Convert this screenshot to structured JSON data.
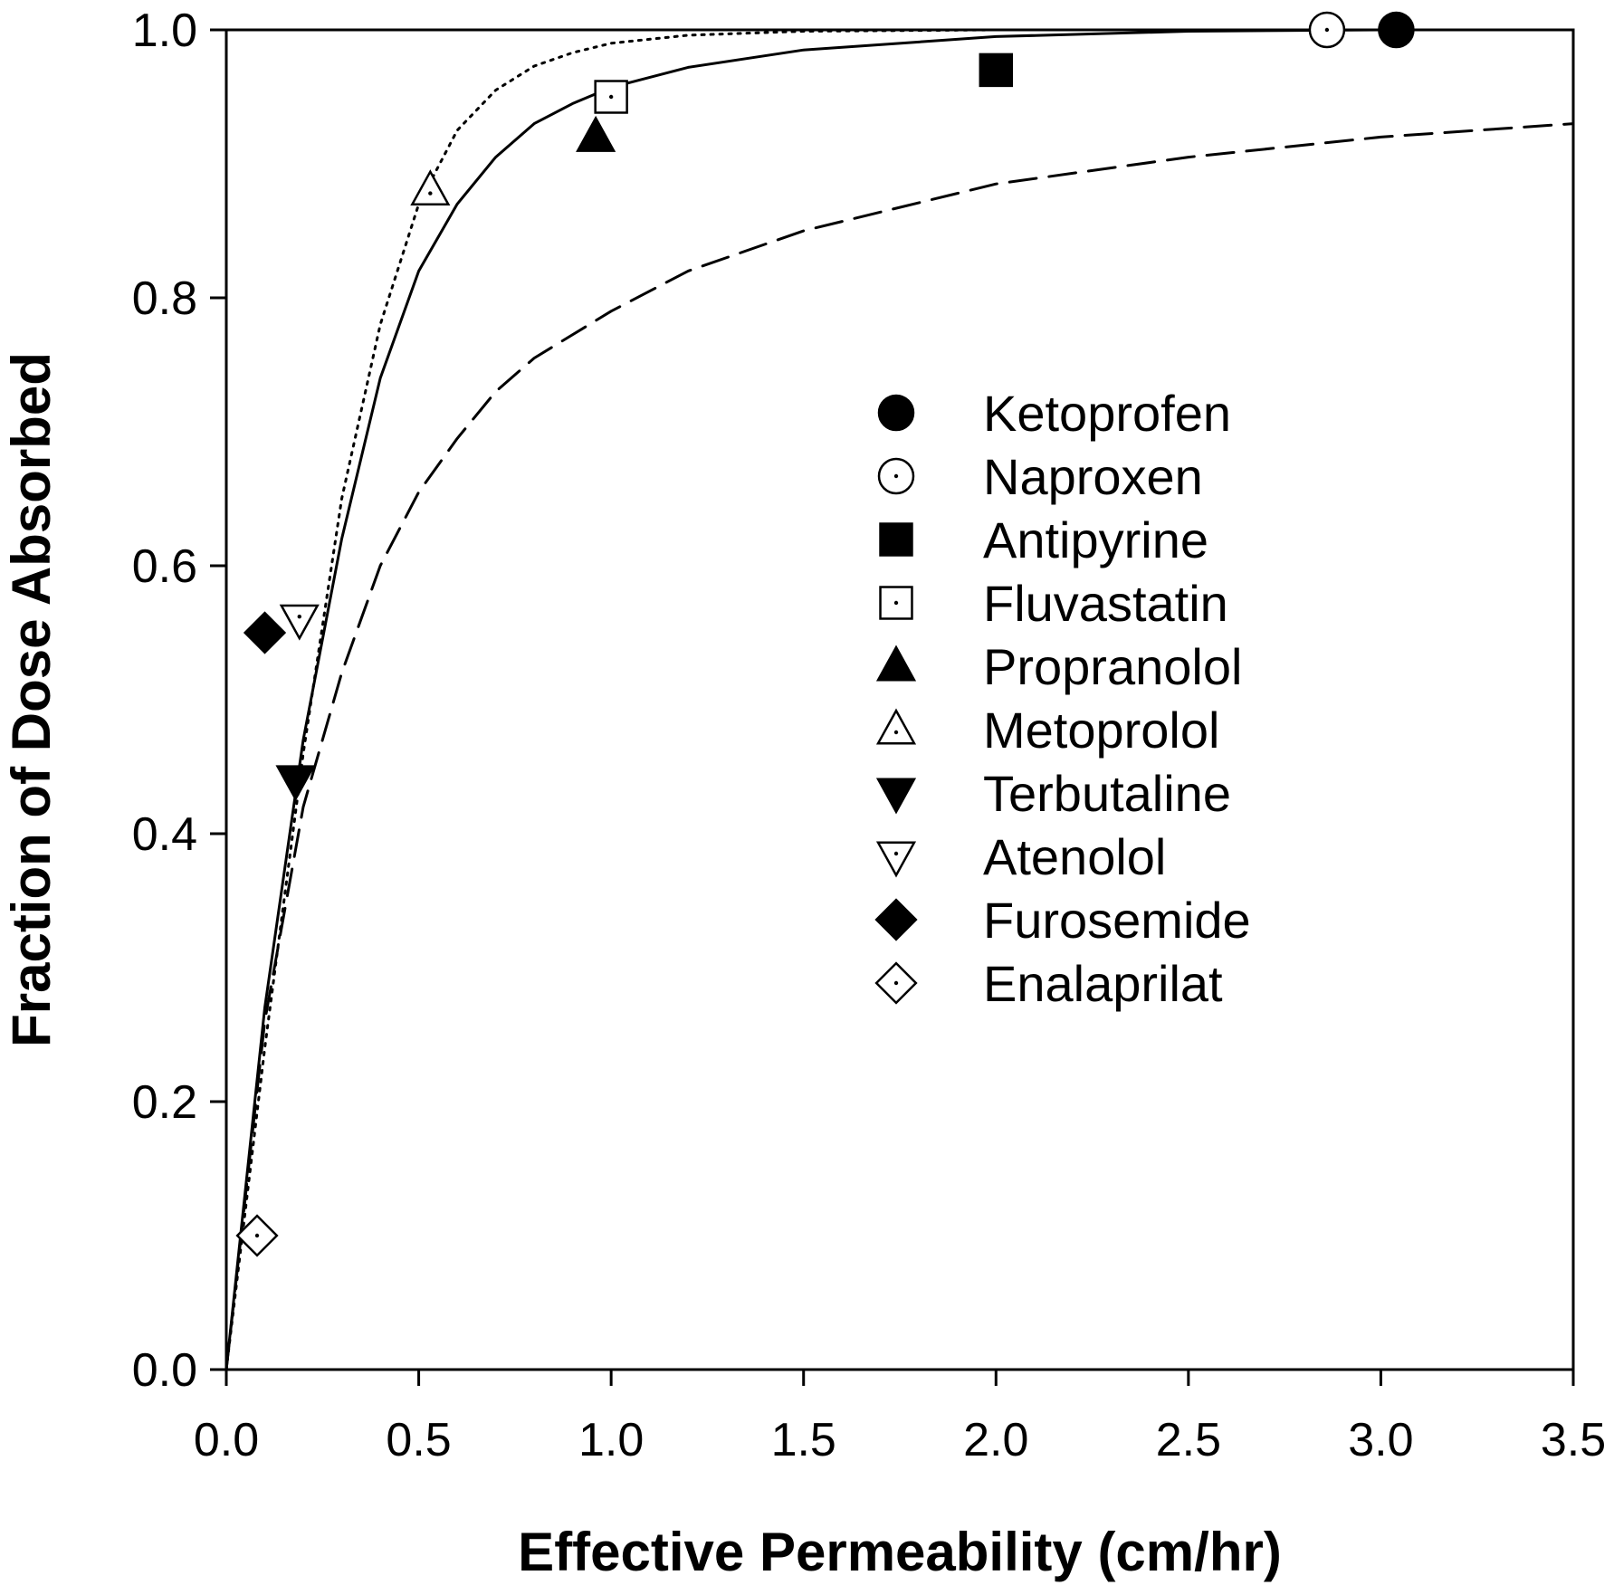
{
  "chart_data": {
    "type": "scatter",
    "title": "",
    "xlabel": "Effective Permeability (cm/hr)",
    "ylabel": "Fraction of Dose Absorbed",
    "xlim": [
      0,
      3.5
    ],
    "ylim": [
      0,
      1.0
    ],
    "x_ticks": [
      "0.0",
      "0.5",
      "1.0",
      "1.5",
      "2.0",
      "2.5",
      "3.0",
      "3.5"
    ],
    "y_ticks": [
      "0.0",
      "0.2",
      "0.4",
      "0.6",
      "0.8",
      "1.0"
    ],
    "grid": false,
    "legend_position": "center-right",
    "series": [
      {
        "name": "Ketoprofen",
        "marker": "circle",
        "filled": true,
        "x": 3.04,
        "y": 1.0
      },
      {
        "name": "Naproxen",
        "marker": "circle",
        "filled": false,
        "x": 2.86,
        "y": 1.0
      },
      {
        "name": "Antipyrine",
        "marker": "square",
        "filled": true,
        "x": 2.0,
        "y": 0.97
      },
      {
        "name": "Fluvastatin",
        "marker": "square",
        "filled": false,
        "x": 1.0,
        "y": 0.95
      },
      {
        "name": "Propranolol",
        "marker": "triangle-up",
        "filled": true,
        "x": 0.96,
        "y": 0.92
      },
      {
        "name": "Metoprolol",
        "marker": "triangle-up",
        "filled": false,
        "x": 0.53,
        "y": 0.88
      },
      {
        "name": "Terbutaline",
        "marker": "triangle-down",
        "filled": true,
        "x": 0.18,
        "y": 0.44
      },
      {
        "name": "Atenolol",
        "marker": "triangle-down",
        "filled": false,
        "x": 0.19,
        "y": 0.56
      },
      {
        "name": "Furosemide",
        "marker": "diamond",
        "filled": true,
        "x": 0.1,
        "y": 0.55
      },
      {
        "name": "Enalaprilat",
        "marker": "diamond",
        "filled": false,
        "x": 0.08,
        "y": 0.1
      }
    ],
    "curves": [
      {
        "style": "solid",
        "x": [
          0,
          0.1,
          0.2,
          0.3,
          0.4,
          0.5,
          0.6,
          0.7,
          0.8,
          0.9,
          1.0,
          1.2,
          1.5,
          2.0,
          2.5,
          3.0,
          3.5
        ],
        "y": [
          0,
          0.27,
          0.47,
          0.62,
          0.74,
          0.82,
          0.87,
          0.905,
          0.93,
          0.945,
          0.957,
          0.972,
          0.985,
          0.995,
          0.999,
          1.0,
          1.0
        ]
      },
      {
        "style": "dotted",
        "x": [
          0,
          0.1,
          0.2,
          0.3,
          0.4,
          0.5,
          0.6,
          0.7,
          0.8,
          0.9,
          1.0,
          1.2,
          1.5,
          2.0,
          3.0,
          3.5
        ],
        "y": [
          0,
          0.24,
          0.46,
          0.65,
          0.78,
          0.87,
          0.925,
          0.955,
          0.973,
          0.983,
          0.99,
          0.996,
          0.999,
          1.0,
          1.0,
          1.0
        ]
      },
      {
        "style": "dashed",
        "x": [
          0,
          0.1,
          0.2,
          0.3,
          0.4,
          0.5,
          0.6,
          0.7,
          0.8,
          1.0,
          1.2,
          1.5,
          2.0,
          2.5,
          3.0,
          3.5
        ],
        "y": [
          0,
          0.26,
          0.42,
          0.52,
          0.6,
          0.655,
          0.695,
          0.73,
          0.755,
          0.79,
          0.82,
          0.85,
          0.885,
          0.905,
          0.92,
          0.93
        ]
      }
    ]
  }
}
